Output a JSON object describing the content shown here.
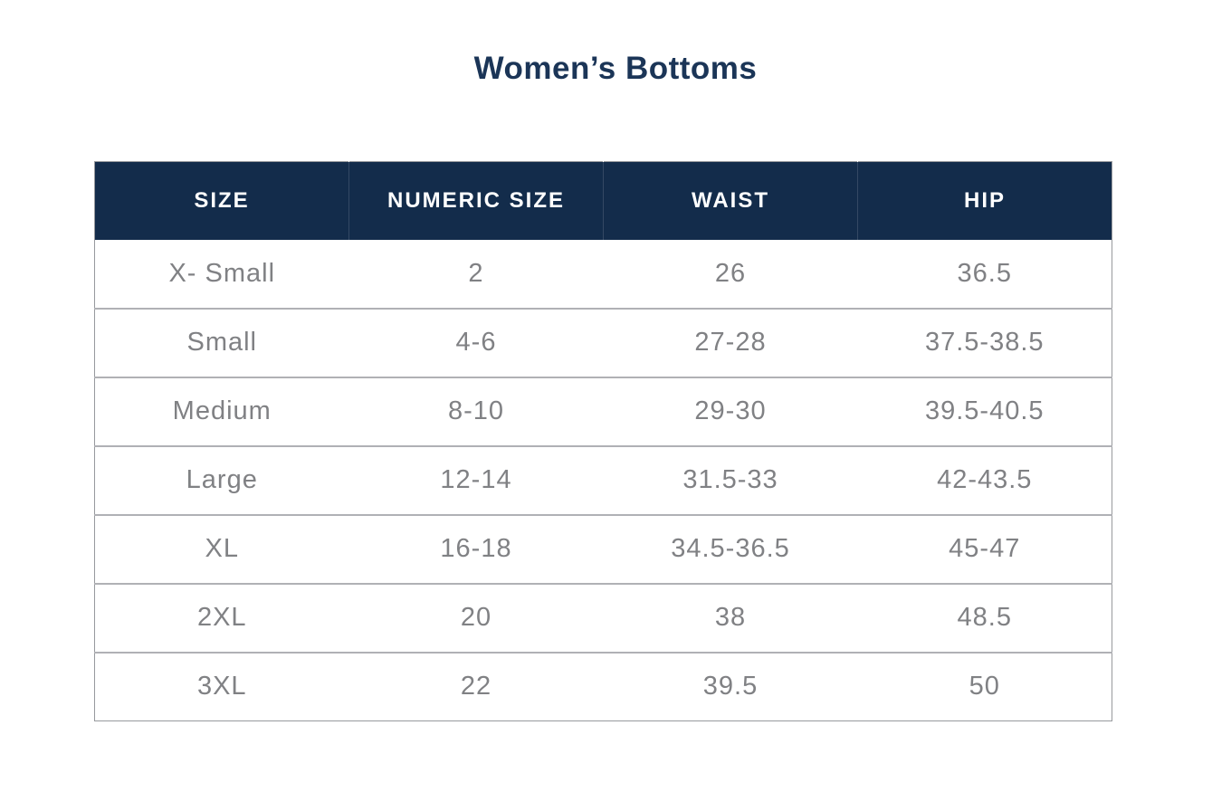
{
  "title": "Women’s Bottoms",
  "chart_data": {
    "type": "table",
    "title": "Women’s Bottoms",
    "columns": [
      "SIZE",
      "NUMERIC SIZE",
      "WAIST",
      "HIP"
    ],
    "rows": [
      [
        "X- Small",
        "2",
        "26",
        "36.5"
      ],
      [
        "Small",
        "4-6",
        "27-28",
        "37.5-38.5"
      ],
      [
        "Medium",
        "8-10",
        "29-30",
        "39.5-40.5"
      ],
      [
        "Large",
        "12-14",
        "31.5-33",
        "42-43.5"
      ],
      [
        "XL",
        "16-18",
        "34.5-36.5",
        "45-47"
      ],
      [
        "2XL",
        "20",
        "38",
        "48.5"
      ],
      [
        "3XL",
        "22",
        "39.5",
        "50"
      ]
    ]
  },
  "colors": {
    "header_bg": "#132c4b",
    "header_text": "#ffffff",
    "title_text": "#1b3557",
    "cell_text": "#808184",
    "row_border": "#b0b1b5"
  }
}
